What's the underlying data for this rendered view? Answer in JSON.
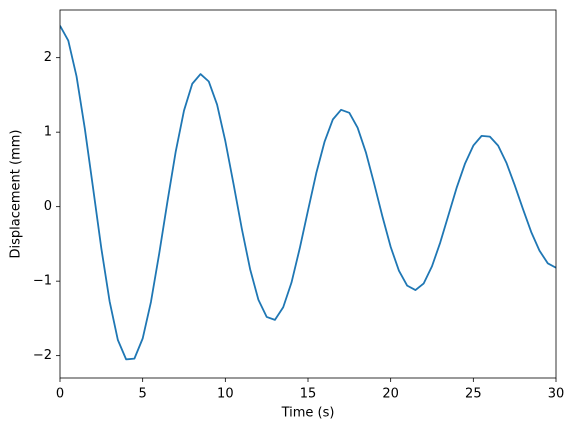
{
  "chart_data": {
    "type": "line",
    "x_label": "Time (s)",
    "y_label": "Displacement (mm)",
    "x": [
      0,
      0.5,
      1,
      1.5,
      2,
      2.5,
      3,
      3.5,
      4,
      4.5,
      5,
      5.5,
      6,
      6.5,
      7,
      7.5,
      8,
      8.5,
      9,
      9.5,
      10,
      10.5,
      11,
      11.5,
      12,
      12.5,
      13,
      13.5,
      14,
      14.5,
      15,
      15.5,
      16,
      16.5,
      17,
      17.5,
      18,
      18.5,
      19,
      19.5,
      20,
      20.5,
      21,
      21.5,
      22,
      22.5,
      23,
      23.5,
      24,
      24.5,
      25,
      25.5,
      26,
      26.5,
      27,
      27.5,
      28,
      28.5,
      29,
      29.5,
      30
    ],
    "series": [
      {
        "color": "#1f77b4",
        "values": [
          2.43,
          2.23,
          1.75,
          1.05,
          0.25,
          -0.56,
          -1.27,
          -1.79,
          -2.05,
          -2.04,
          -1.77,
          -1.28,
          -0.63,
          0.07,
          0.74,
          1.29,
          1.65,
          1.78,
          1.68,
          1.37,
          0.88,
          0.3,
          -0.3,
          -0.84,
          -1.25,
          -1.48,
          -1.52,
          -1.35,
          -1.02,
          -0.56,
          -0.05,
          0.45,
          0.87,
          1.17,
          1.3,
          1.26,
          1.06,
          0.73,
          0.31,
          -0.13,
          -0.54,
          -0.86,
          -1.06,
          -1.12,
          -1.03,
          -0.8,
          -0.48,
          -0.11,
          0.26,
          0.58,
          0.82,
          0.95,
          0.94,
          0.82,
          0.59,
          0.29,
          -0.03,
          -0.34,
          -0.59,
          -0.76,
          -0.82
        ]
      }
    ],
    "xlim": [
      0,
      30
    ],
    "xticks": [
      0,
      5,
      10,
      15,
      20,
      25,
      30
    ],
    "ylim": [
      -2.3,
      2.64
    ],
    "yticks": [
      {
        "value": -2,
        "label": "−2"
      },
      {
        "value": -1,
        "label": "−1"
      },
      0,
      1,
      2
    ],
    "grid": false
  }
}
